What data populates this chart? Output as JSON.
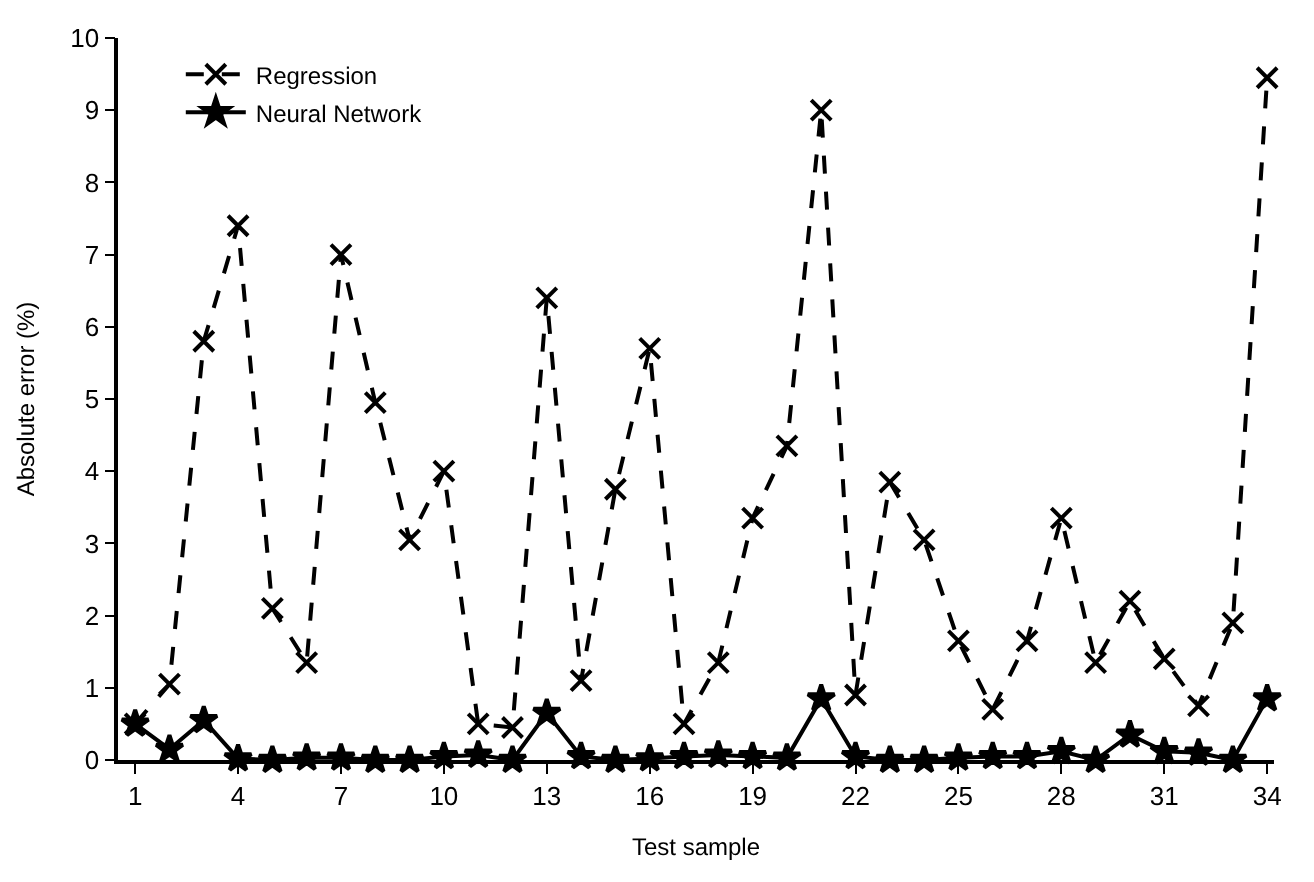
{
  "chart_data": {
    "type": "line",
    "xlabel": "Test sample",
    "ylabel": "Absolute error (%)",
    "x": [
      1,
      2,
      3,
      4,
      5,
      6,
      7,
      8,
      9,
      10,
      11,
      12,
      13,
      14,
      15,
      16,
      17,
      18,
      19,
      20,
      21,
      22,
      23,
      24,
      25,
      26,
      27,
      28,
      29,
      30,
      31,
      32,
      33,
      34
    ],
    "series": [
      {
        "name": "Regression",
        "color": "#000000",
        "marker": "cross",
        "line_style": "dashed",
        "values": [
          0.5,
          1.05,
          5.8,
          7.4,
          2.1,
          1.35,
          7.0,
          4.95,
          3.05,
          4.0,
          0.5,
          0.45,
          6.4,
          1.1,
          3.75,
          5.7,
          0.5,
          1.35,
          3.35,
          4.35,
          9.0,
          0.9,
          3.85,
          3.05,
          1.65,
          0.7,
          1.65,
          3.35,
          1.35,
          2.2,
          1.4,
          0.75,
          1.9,
          9.45
        ]
      },
      {
        "name": "Neural Network",
        "color": "#000000",
        "marker": "star",
        "line_style": "solid",
        "values": [
          0.5,
          0.15,
          0.55,
          0.02,
          0,
          0.03,
          0.03,
          0,
          0,
          0.05,
          0.07,
          0,
          0.65,
          0.05,
          0,
          0.02,
          0.05,
          0.07,
          0.05,
          0.03,
          0.85,
          0.05,
          0,
          0,
          0.03,
          0.05,
          0.05,
          0.12,
          0,
          0.35,
          0.12,
          0.1,
          0,
          0.85
        ]
      }
    ],
    "xlim": [
      0.5,
      34.2
    ],
    "xticks": [
      1,
      4,
      7,
      10,
      13,
      16,
      19,
      22,
      25,
      28,
      31,
      34
    ],
    "ylim": [
      0,
      10
    ],
    "yticks": [
      0,
      1,
      2,
      3,
      4,
      5,
      6,
      7,
      8,
      9,
      10
    ],
    "legend": "top left"
  }
}
